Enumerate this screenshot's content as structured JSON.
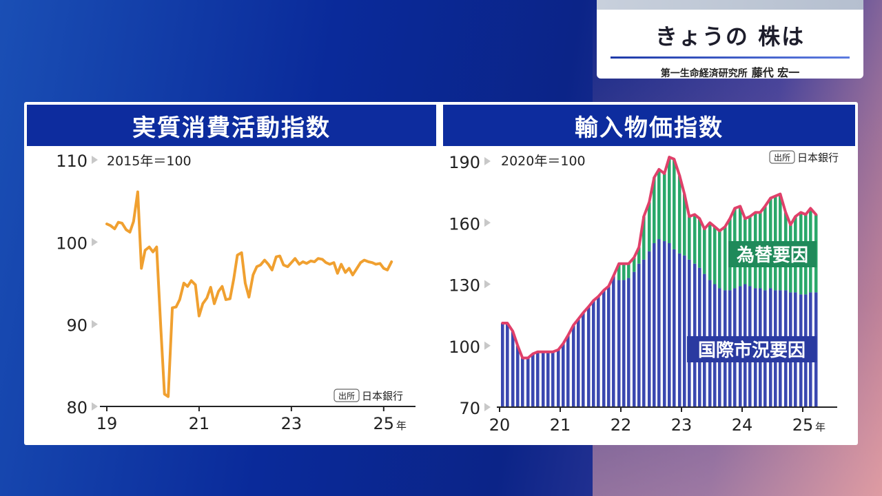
{
  "title_card": {
    "title": "きょうの 株は",
    "organization": "第一生命経済研究所",
    "person": "藤代 宏一"
  },
  "chart_data": [
    {
      "type": "line",
      "title": "実質消費活動指数",
      "note": "2015年＝100",
      "source_label": "出所",
      "source": "日本銀行",
      "ylim": [
        80,
        110
      ],
      "yticks": [
        110,
        100,
        90,
        80
      ],
      "xlim": [
        2019,
        2025.6
      ],
      "xticks": [
        "19",
        "21",
        "23",
        "25"
      ],
      "x_unit": "年",
      "color": "#f0a030",
      "x": [
        2019.0,
        2019.08,
        2019.17,
        2019.25,
        2019.33,
        2019.42,
        2019.5,
        2019.58,
        2019.67,
        2019.75,
        2019.83,
        2019.92,
        2020.0,
        2020.08,
        2020.17,
        2020.25,
        2020.33,
        2020.42,
        2020.5,
        2020.58,
        2020.67,
        2020.75,
        2020.83,
        2020.92,
        2021.0,
        2021.08,
        2021.17,
        2021.25,
        2021.33,
        2021.42,
        2021.5,
        2021.58,
        2021.67,
        2021.75,
        2021.83,
        2021.92,
        2022.0,
        2022.08,
        2022.17,
        2022.25,
        2022.33,
        2022.42,
        2022.5,
        2022.58,
        2022.67,
        2022.75,
        2022.83,
        2022.92,
        2023.0,
        2023.08,
        2023.17,
        2023.25,
        2023.33,
        2023.42,
        2023.5,
        2023.58,
        2023.67,
        2023.75,
        2023.83,
        2023.92,
        2024.0,
        2024.08,
        2024.17,
        2024.25,
        2024.33,
        2024.42,
        2024.5,
        2024.58,
        2024.67,
        2024.75,
        2024.83,
        2024.92,
        2025.0,
        2025.08,
        2025.17
      ],
      "values": [
        102.2,
        102.0,
        101.6,
        102.4,
        102.3,
        101.5,
        101.2,
        102.5,
        106.1,
        96.8,
        99.0,
        99.4,
        98.8,
        99.4,
        89.5,
        81.5,
        81.2,
        92.0,
        92.1,
        93.0,
        95.0,
        94.6,
        95.3,
        94.8,
        91.0,
        92.5,
        93.2,
        94.5,
        92.5,
        94.0,
        94.6,
        93.0,
        93.1,
        95.5,
        98.4,
        98.7,
        95.0,
        93.3,
        96.0,
        97.0,
        97.2,
        97.8,
        97.3,
        96.6,
        98.2,
        98.3,
        97.2,
        97.0,
        97.5,
        98.0,
        97.3,
        97.6,
        97.4,
        97.7,
        97.6,
        98.0,
        97.9,
        97.5,
        97.3,
        97.5,
        96.2,
        97.3,
        96.3,
        96.8,
        96.0,
        96.8,
        97.5,
        97.8,
        97.6,
        97.5,
        97.3,
        97.4,
        96.8,
        96.6,
        97.6
      ]
    },
    {
      "type": "bar",
      "title": "輸入物価指数",
      "note": "2020年＝100",
      "source_label": "出所",
      "source": "日本銀行",
      "ylim": [
        70,
        190
      ],
      "yticks": [
        190,
        160,
        130,
        100,
        70
      ],
      "xlim": [
        2020,
        2025.5
      ],
      "xticks": [
        "20",
        "21",
        "22",
        "23",
        "24",
        "25"
      ],
      "x_unit": "年",
      "total_color": "#e0406a",
      "series": [
        {
          "name": "国際市況要因",
          "color": "#3a48b0"
        },
        {
          "name": "為替要因",
          "color": "#2aa86a"
        }
      ],
      "x": [
        2020.0,
        2020.08,
        2020.17,
        2020.25,
        2020.33,
        2020.42,
        2020.5,
        2020.58,
        2020.67,
        2020.75,
        2020.83,
        2020.92,
        2021.0,
        2021.08,
        2021.17,
        2021.25,
        2021.33,
        2021.42,
        2021.5,
        2021.58,
        2021.67,
        2021.75,
        2021.83,
        2021.92,
        2022.0,
        2022.08,
        2022.17,
        2022.25,
        2022.33,
        2022.42,
        2022.5,
        2022.58,
        2022.67,
        2022.75,
        2022.83,
        2022.92,
        2023.0,
        2023.08,
        2023.17,
        2023.25,
        2023.33,
        2023.42,
        2023.5,
        2023.58,
        2023.67,
        2023.75,
        2023.83,
        2023.92,
        2024.0,
        2024.08,
        2024.17,
        2024.25,
        2024.33,
        2024.42,
        2024.5,
        2024.58,
        2024.67,
        2024.75,
        2024.83,
        2024.92,
        2025.0,
        2025.08,
        2025.17
      ],
      "market": [
        111,
        111,
        107,
        100,
        94,
        94,
        96,
        97,
        97,
        97,
        97,
        98,
        101,
        105,
        110,
        113,
        116,
        119,
        122,
        124,
        127,
        129,
        134,
        132,
        132,
        133,
        136,
        140,
        142,
        146,
        150,
        152,
        151,
        150,
        147,
        145,
        144,
        142,
        140,
        138,
        135,
        132,
        130,
        128,
        127,
        127,
        128,
        129,
        130,
        129,
        128,
        128,
        127,
        128,
        127,
        127,
        127,
        126,
        126,
        125,
        125,
        126,
        126
      ],
      "total": [
        111,
        111,
        107,
        100,
        94,
        94,
        96,
        97,
        97,
        97,
        97,
        98,
        101,
        105,
        110,
        113,
        116,
        119,
        122,
        124,
        127,
        129,
        134,
        140,
        140,
        140,
        143,
        148,
        163,
        170,
        182,
        186,
        184,
        192,
        191,
        183,
        174,
        163,
        164,
        162,
        157,
        160,
        158,
        156,
        158,
        162,
        167,
        168,
        162,
        163,
        165,
        165,
        168,
        172,
        173,
        174,
        165,
        159,
        163,
        165,
        164,
        167,
        164
      ]
    }
  ]
}
